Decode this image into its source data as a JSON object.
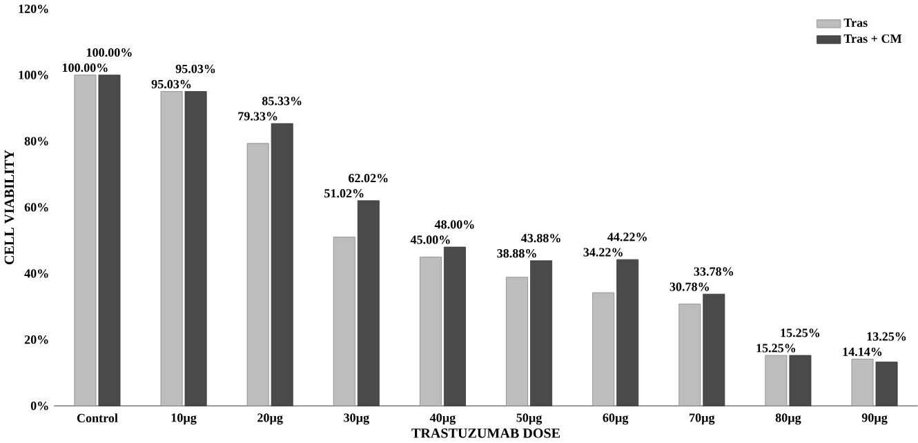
{
  "chart_data": {
    "type": "bar",
    "xlabel": "TRASTUZUMAB DOSE",
    "ylabel": "CELL VIABILITY",
    "categories": [
      "Control",
      "10µg",
      "20µg",
      "30µg",
      "40µg",
      "50µg",
      "60µg",
      "70µg",
      "80µg",
      "90µg"
    ],
    "series": [
      {
        "name": "Tras",
        "color": "#bdbdbd",
        "values": [
          100,
          95.03,
          79.33,
          51.02,
          45.0,
          38.88,
          34.22,
          30.78,
          15.25,
          14.14
        ],
        "value_labels": [
          "100.00%",
          "95.03%",
          "79.33%",
          "51.02%",
          "45.00%",
          "38.88%",
          "34.22%",
          "30.78%",
          "15.25%",
          "14.14%"
        ]
      },
      {
        "name": "Tras + CM",
        "color": "#4a4a4a",
        "values": [
          100,
          95.03,
          85.33,
          62.02,
          48.0,
          43.88,
          44.22,
          33.78,
          15.25,
          13.25
        ],
        "value_labels": [
          "100.00%",
          "95.03%",
          "85.33%",
          "62.02%",
          "48.00%",
          "43.88%",
          "44.22%",
          "33.78%",
          "15.25%",
          "13.25%"
        ]
      }
    ],
    "ylim": [
      0,
      120
    ],
    "yticks": [
      {
        "value": 0,
        "label": "0%"
      },
      {
        "value": 20,
        "label": "20%"
      },
      {
        "value": 40,
        "label": "40%"
      },
      {
        "value": 60,
        "label": "60%"
      },
      {
        "value": 80,
        "label": "80%"
      },
      {
        "value": 100,
        "label": "100%"
      },
      {
        "value": 120,
        "label": "120%"
      }
    ],
    "legend": "top right",
    "grid": false
  }
}
